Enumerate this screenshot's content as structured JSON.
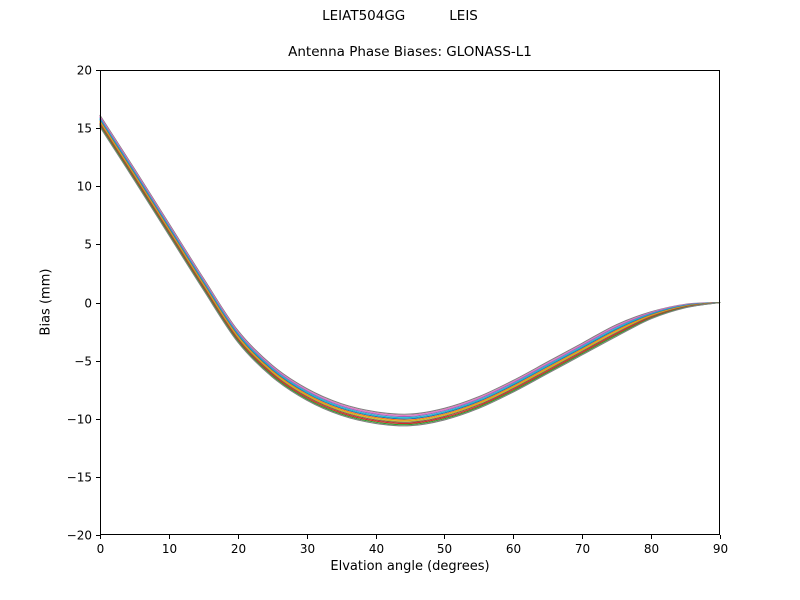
{
  "chart_data": {
    "type": "line",
    "suptitle_parts": [
      "LEIAT504GG",
      "LEIS"
    ],
    "title": "Antenna Phase Biases: GLONASS-L1",
    "xlabel": "Elvation angle (degrees)",
    "ylabel": "Bias (mm)",
    "xlim": [
      0,
      90
    ],
    "ylim": [
      -20,
      20
    ],
    "grid": false,
    "legend": false,
    "background_color": "#ffffff",
    "spine_color": "#000000",
    "xticks": [
      0,
      10,
      20,
      30,
      40,
      50,
      60,
      70,
      80,
      90
    ],
    "xtick_labels": [
      "0",
      "10",
      "20",
      "30",
      "40",
      "50",
      "60",
      "70",
      "80",
      "90"
    ],
    "yticks": [
      -20,
      -15,
      -10,
      -5,
      0,
      5,
      10,
      15,
      20
    ],
    "ytick_labels": [
      "−20",
      "−15",
      "−10",
      "−5",
      "0",
      "5",
      "10",
      "15",
      "20"
    ],
    "x": [
      0,
      5,
      10,
      15,
      20,
      25,
      30,
      35,
      40,
      45,
      50,
      55,
      60,
      65,
      70,
      75,
      80,
      85,
      90
    ],
    "series": [
      {
        "name": "line-01",
        "color": "#7f7f7f",
        "values": [
          16.1,
          11.5,
          6.8,
          2.1,
          -2.4,
          -5.4,
          -7.4,
          -8.7,
          -9.4,
          -9.6,
          -9.1,
          -8.1,
          -6.7,
          -5.1,
          -3.5,
          -1.9,
          -0.8,
          -0.15,
          0.0
        ]
      },
      {
        "name": "line-02",
        "color": "#e377c2",
        "values": [
          16.0,
          11.4,
          6.7,
          2.0,
          -2.5,
          -5.5,
          -7.5,
          -8.8,
          -9.5,
          -9.7,
          -9.2,
          -8.2,
          -6.8,
          -5.2,
          -3.6,
          -2.0,
          -0.86,
          -0.18,
          0.0
        ]
      },
      {
        "name": "line-03",
        "color": "#9467bd",
        "values": [
          15.9,
          11.3,
          6.6,
          1.9,
          -2.6,
          -5.6,
          -7.6,
          -8.9,
          -9.6,
          -9.8,
          -9.3,
          -8.3,
          -6.9,
          -5.3,
          -3.7,
          -2.1,
          -0.92,
          -0.21,
          0.0
        ]
      },
      {
        "name": "line-04",
        "color": "#17becf",
        "values": [
          15.8,
          11.2,
          6.5,
          1.8,
          -2.7,
          -5.7,
          -7.7,
          -9.0,
          -9.7,
          -9.9,
          -9.4,
          -8.4,
          -7.0,
          -5.4,
          -3.8,
          -2.2,
          -0.98,
          -0.24,
          0.0
        ]
      },
      {
        "name": "line-05",
        "color": "#1f77b4",
        "values": [
          15.7,
          11.1,
          6.4,
          1.7,
          -2.8,
          -5.8,
          -7.8,
          -9.1,
          -9.8,
          -10.0,
          -9.5,
          -8.5,
          -7.1,
          -5.5,
          -3.9,
          -2.3,
          -1.04,
          -0.27,
          0.0
        ]
      },
      {
        "name": "line-06",
        "color": "#ff7f0e",
        "values": [
          15.6,
          11.0,
          6.3,
          1.6,
          -2.9,
          -5.9,
          -7.9,
          -9.2,
          -9.9,
          -10.1,
          -9.6,
          -8.6,
          -7.2,
          -5.6,
          -4.0,
          -2.4,
          -1.1,
          -0.3,
          0.0
        ]
      },
      {
        "name": "line-07",
        "color": "#bcbd22",
        "values": [
          15.5,
          10.9,
          6.2,
          1.5,
          -3.0,
          -6.0,
          -8.0,
          -9.3,
          -10.0,
          -10.2,
          -9.7,
          -8.7,
          -7.3,
          -5.7,
          -4.1,
          -2.5,
          -1.16,
          -0.33,
          0.0
        ]
      },
      {
        "name": "line-08",
        "color": "#8c564b",
        "values": [
          15.4,
          10.8,
          6.1,
          1.4,
          -3.1,
          -6.1,
          -8.1,
          -9.4,
          -10.1,
          -10.3,
          -9.8,
          -8.8,
          -7.4,
          -5.8,
          -4.2,
          -2.6,
          -1.22,
          -0.36,
          0.0
        ]
      },
      {
        "name": "line-09",
        "color": "#d62728",
        "values": [
          15.3,
          10.7,
          6.0,
          1.3,
          -3.2,
          -6.2,
          -8.2,
          -9.5,
          -10.2,
          -10.4,
          -9.9,
          -8.9,
          -7.5,
          -5.9,
          -4.3,
          -2.7,
          -1.28,
          -0.39,
          0.0
        ]
      },
      {
        "name": "line-10",
        "color": "#2ca02c",
        "values": [
          15.2,
          10.6,
          5.9,
          1.2,
          -3.3,
          -6.3,
          -8.3,
          -9.6,
          -10.3,
          -10.5,
          -10.0,
          -9.0,
          -7.6,
          -6.0,
          -4.4,
          -2.8,
          -1.34,
          -0.42,
          0.0
        ]
      },
      {
        "name": "line-11",
        "color": "#7f7f7f",
        "values": [
          15.1,
          10.5,
          5.8,
          1.1,
          -3.4,
          -6.4,
          -8.4,
          -9.7,
          -10.4,
          -10.6,
          -10.1,
          -9.1,
          -7.7,
          -6.1,
          -4.5,
          -2.9,
          -1.4,
          -0.45,
          0.0
        ]
      }
    ]
  }
}
